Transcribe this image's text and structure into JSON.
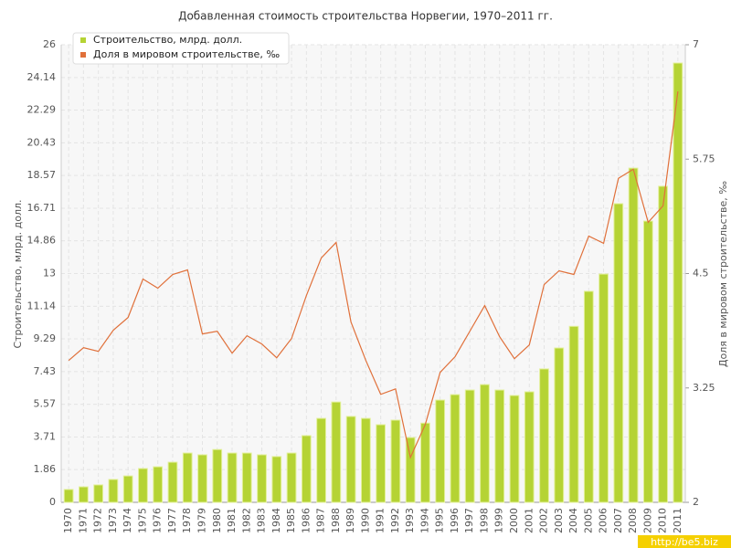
{
  "chart_data": {
    "type": "bar_line",
    "title": "Добавленная стоимость строительства Норвегии, 1970–2011 гг.",
    "y_label": "Строительство, млрд. долл.",
    "y2_label": "Доля в мировом строительстве, ‰",
    "watermark": "http://be5.biz",
    "categories": [
      "1970",
      "1971",
      "1972",
      "1973",
      "1974",
      "1975",
      "1976",
      "1977",
      "1978",
      "1979",
      "1980",
      "1981",
      "1982",
      "1983",
      "1984",
      "1985",
      "1986",
      "1987",
      "1988",
      "1989",
      "1990",
      "1991",
      "1992",
      "1993",
      "1994",
      "1995",
      "1996",
      "1997",
      "1998",
      "1999",
      "2000",
      "2001",
      "2002",
      "2003",
      "2004",
      "2005",
      "2006",
      "2007",
      "2008",
      "2009",
      "2010",
      "2011"
    ],
    "series": [
      {
        "name": "Строительство, млрд. долл.",
        "color": "#b5d334",
        "type": "bar",
        "values": [
          0.73,
          0.88,
          0.99,
          1.3,
          1.5,
          1.92,
          2.02,
          2.28,
          2.8,
          2.7,
          3.0,
          2.8,
          2.8,
          2.7,
          2.6,
          2.8,
          3.79,
          4.77,
          5.7,
          4.88,
          4.77,
          4.41,
          4.67,
          3.68,
          4.5,
          5.81,
          6.12,
          6.38,
          6.69,
          6.38,
          6.07,
          6.28,
          7.58,
          8.77,
          10.0,
          11.99,
          12.97,
          16.97,
          18.99,
          15.98,
          17.96,
          24.96
        ]
      },
      {
        "name": "Доля в мировом строительстве, ‰",
        "color": "#e0703a",
        "type": "line",
        "axis": "y2",
        "values": [
          3.55,
          3.69,
          3.65,
          3.88,
          4.02,
          4.44,
          4.34,
          4.49,
          4.54,
          3.84,
          3.87,
          3.63,
          3.82,
          3.73,
          3.58,
          3.79,
          4.26,
          4.67,
          4.84,
          3.97,
          3.55,
          3.18,
          3.24,
          2.49,
          2.85,
          3.42,
          3.59,
          3.87,
          4.15,
          3.81,
          3.57,
          3.72,
          4.38,
          4.53,
          4.49,
          4.91,
          4.83,
          5.54,
          5.64,
          5.06,
          5.24,
          6.49
        ]
      }
    ],
    "ylim": [
      0,
      26
    ],
    "yticks": [
      0,
      1.86,
      3.71,
      5.57,
      7.43,
      9.29,
      11.14,
      13,
      14.86,
      16.71,
      18.57,
      20.43,
      22.29,
      24.14,
      26
    ],
    "y2lim": [
      2,
      7
    ],
    "y2ticks": [
      2,
      3.25,
      4.5,
      5.75,
      7
    ],
    "grid": true,
    "legend": "top-left"
  }
}
